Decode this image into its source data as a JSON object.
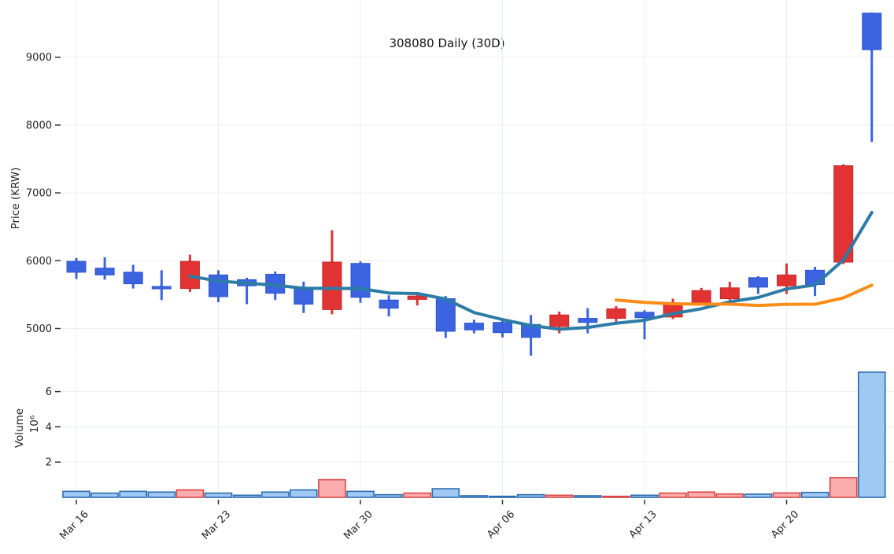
{
  "chart_data": {
    "type": "candlestick",
    "title": "308080 Daily (30D)",
    "legend_position": "none",
    "price_axis": {
      "label": "Price (KRW)",
      "tick_labels": [
        "5000",
        "6000",
        "7000",
        "8000",
        "9000"
      ],
      "tick_values": [
        5000,
        6000,
        7000,
        8000,
        9000
      ],
      "range": [
        4560,
        9830
      ],
      "grid": true
    },
    "volume_axis": {
      "label": "Volume",
      "scale_label": "10⁶",
      "tick_labels": [
        "2",
        "4",
        "6"
      ],
      "tick_values": [
        2000000,
        4000000,
        6000000
      ],
      "range": [
        0,
        7700000
      ],
      "grid": true
    },
    "x_axis": {
      "tick_labels": [
        "Mar 16",
        "Mar 23",
        "Mar 30",
        "Apr 06",
        "Apr 13",
        "Apr 20"
      ],
      "tick_day_indices": [
        0,
        5,
        10,
        15,
        20,
        25
      ]
    },
    "candles": [
      {
        "date": "Mar 16",
        "open": 5990,
        "high": 6040,
        "low": 5730,
        "close": 5830,
        "volume": 340000
      },
      {
        "date": "Mar 17",
        "open": 5890,
        "high": 6050,
        "low": 5720,
        "close": 5790,
        "volume": 240000
      },
      {
        "date": "Mar 18",
        "open": 5830,
        "high": 5940,
        "low": 5590,
        "close": 5660,
        "volume": 340000
      },
      {
        "date": "Mar 19",
        "open": 5620,
        "high": 5860,
        "low": 5420,
        "close": 5590,
        "volume": 300000
      },
      {
        "date": "Mar 20",
        "open": 5590,
        "high": 6090,
        "low": 5540,
        "close": 5990,
        "volume": 420000
      },
      {
        "date": "Mar 23",
        "open": 5790,
        "high": 5860,
        "low": 5390,
        "close": 5470,
        "volume": 240000
      },
      {
        "date": "Mar 24",
        "open": 5720,
        "high": 5750,
        "low": 5360,
        "close": 5630,
        "volume": 120000
      },
      {
        "date": "Mar 25",
        "open": 5800,
        "high": 5840,
        "low": 5420,
        "close": 5520,
        "volume": 300000
      },
      {
        "date": "Mar 26",
        "open": 5590,
        "high": 5690,
        "low": 5230,
        "close": 5360,
        "volume": 420000
      },
      {
        "date": "Mar 27",
        "open": 5280,
        "high": 6450,
        "low": 5210,
        "close": 5980,
        "volume": 1000000
      },
      {
        "date": "Mar 30",
        "open": 5960,
        "high": 5990,
        "low": 5380,
        "close": 5460,
        "volume": 340000
      },
      {
        "date": "Mar 31",
        "open": 5420,
        "high": 5490,
        "low": 5180,
        "close": 5300,
        "volume": 150000
      },
      {
        "date": "Apr 01",
        "open": 5430,
        "high": 5540,
        "low": 5340,
        "close": 5480,
        "volume": 240000
      },
      {
        "date": "Apr 02",
        "open": 5440,
        "high": 5480,
        "low": 4860,
        "close": 4960,
        "volume": 490000
      },
      {
        "date": "Apr 03",
        "open": 5080,
        "high": 5130,
        "low": 4930,
        "close": 4980,
        "volume": 90000
      },
      {
        "date": "Apr 06",
        "open": 5090,
        "high": 5120,
        "low": 4870,
        "close": 4940,
        "volume": 60000
      },
      {
        "date": "Apr 07",
        "open": 5060,
        "high": 5200,
        "low": 4600,
        "close": 4870,
        "volume": 150000
      },
      {
        "date": "Apr 08",
        "open": 5030,
        "high": 5250,
        "low": 4930,
        "close": 5200,
        "volume": 120000
      },
      {
        "date": "Apr 09",
        "open": 5150,
        "high": 5300,
        "low": 4930,
        "close": 5090,
        "volume": 90000
      },
      {
        "date": "Apr 10",
        "open": 5150,
        "high": 5330,
        "low": 5100,
        "close": 5290,
        "volume": 60000
      },
      {
        "date": "Apr 13",
        "open": 5240,
        "high": 5270,
        "low": 4840,
        "close": 5160,
        "volume": 120000
      },
      {
        "date": "Apr 14",
        "open": 5170,
        "high": 5440,
        "low": 5140,
        "close": 5360,
        "volume": 240000
      },
      {
        "date": "Apr 15",
        "open": 5380,
        "high": 5600,
        "low": 5350,
        "close": 5560,
        "volume": 300000
      },
      {
        "date": "Apr 16",
        "open": 5440,
        "high": 5690,
        "low": 5420,
        "close": 5600,
        "volume": 190000
      },
      {
        "date": "Apr 17",
        "open": 5750,
        "high": 5770,
        "low": 5510,
        "close": 5610,
        "volume": 180000
      },
      {
        "date": "Apr 20",
        "open": 5630,
        "high": 5960,
        "low": 5510,
        "close": 5790,
        "volume": 250000
      },
      {
        "date": "Apr 21",
        "open": 5860,
        "high": 5910,
        "low": 5480,
        "close": 5650,
        "volume": 280000
      },
      {
        "date": "Apr 22",
        "open": 5980,
        "high": 7420,
        "low": 5950,
        "close": 7400,
        "volume": 1120000
      },
      {
        "date": "Apr 23",
        "open": 9650,
        "high": 9660,
        "low": 7750,
        "close": 9110,
        "volume": 7100000
      }
    ],
    "ma5": [
      null,
      null,
      null,
      null,
      5772,
      5700,
      5668,
      5640,
      5594,
      5592,
      5590,
      5524,
      5516,
      5436,
      5236,
      5132,
      5046,
      4990,
      5016,
      5078,
      5122,
      5220,
      5292,
      5394,
      5458,
      5584,
      5642,
      6010,
      6712
    ],
    "ma20": [
      null,
      null,
      null,
      null,
      null,
      null,
      null,
      null,
      null,
      null,
      null,
      null,
      null,
      null,
      null,
      null,
      null,
      null,
      null,
      5420,
      5386,
      5365,
      5360,
      5360,
      5341,
      5357,
      5358,
      5452,
      5640
    ],
    "colors": {
      "up_candle_fill": "#E13333",
      "up_candle_stroke": "#C42A2A",
      "down_candle_fill": "#3C64E1",
      "down_candle_stroke": "#2C55CC",
      "ma5_line": "#2C7CA6",
      "ma20_line": "#FF8C16",
      "volume_up_fill": "#FBADAD",
      "volume_up_border": "#DB4545",
      "volume_down_fill": "#9FC8F2",
      "volume_down_border": "#2B6CB0",
      "grid": "#E9EEF5",
      "tick_mark": "#333333",
      "text": "#262626",
      "background": "#FFFFFF"
    }
  }
}
